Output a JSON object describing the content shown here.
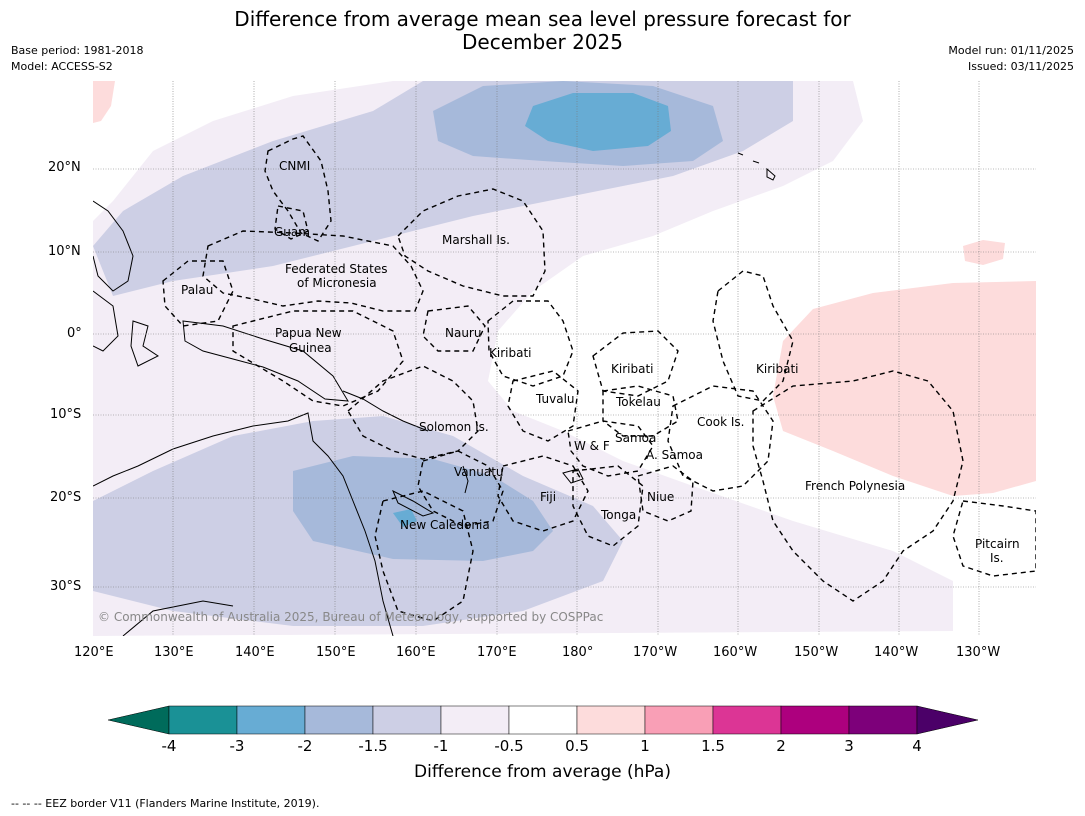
{
  "header": {
    "title_line1": "Difference from average mean sea level pressure forecast for",
    "title_line2": "December 2025",
    "base_period": "Base period: 1981-2018",
    "model": "Model: ACCESS-S2",
    "model_run": "Model run: 01/11/2025",
    "issued": "Issued: 03/11/2025"
  },
  "axes": {
    "longitudes": [
      "120°E",
      "130°E",
      "140°E",
      "150°E",
      "160°E",
      "170°E",
      "180°",
      "170°W",
      "160°W",
      "150°W",
      "140°W",
      "130°W"
    ],
    "latitudes": [
      "20°N",
      "10°N",
      "0°",
      "10°S",
      "20°S",
      "30°S"
    ]
  },
  "map_labels": {
    "cnmi": "CNMI",
    "guam": "Guam",
    "marshall": "Marshall Is.",
    "fsm1": "Federated States",
    "fsm2": "of Micronesia",
    "palau": "Palau",
    "png1": "Papua New",
    "png2": "Guinea",
    "nauru": "Nauru",
    "kiribati_w": "Kiribati",
    "kiribati_c": "Kiribati",
    "kiribati_e": "Kiribati",
    "tuvalu": "Tuvalu",
    "tokelau": "Tokelau",
    "cook": "Cook Is.",
    "solomon": "Solomon Is.",
    "samoa": "Samoa",
    "wf": "W & F",
    "asamoa": "A. Samoa",
    "vanuatu": "Vanuatu",
    "fiji": "Fiji",
    "niue": "Niue",
    "tonga": "Tonga",
    "newcal": "New Caledonia",
    "frpoly": "French Polynesia",
    "pitcairn1": "Pitcairn",
    "pitcairn2": "Is."
  },
  "copyright": "© Commonwealth of Australia 2025, Bureau of Meteorology, supported by COSPPac",
  "colorbar": {
    "title": "Difference from average (hPa)",
    "ticks": [
      "-4",
      "-3",
      "-2",
      "-1.5",
      "-1",
      "-0.5",
      "0.5",
      "1",
      "1.5",
      "2",
      "3",
      "4"
    ],
    "colors": {
      "below": "#006b5b",
      "c1": "#1a9196",
      "c2": "#67acd4",
      "c3": "#a6b9da",
      "c4": "#cdcfe5",
      "c5": "#f3edf6",
      "c6": "#ffffff",
      "c7": "#fddcdc",
      "c8": "#f99fb6",
      "c9": "#dc3595",
      "c10": "#ad007e",
      "c11": "#7d007a",
      "above": "#4b0068"
    }
  },
  "footnote": "--  --  -- EEZ border V11 (Flanders Marine Institute, 2019)."
}
